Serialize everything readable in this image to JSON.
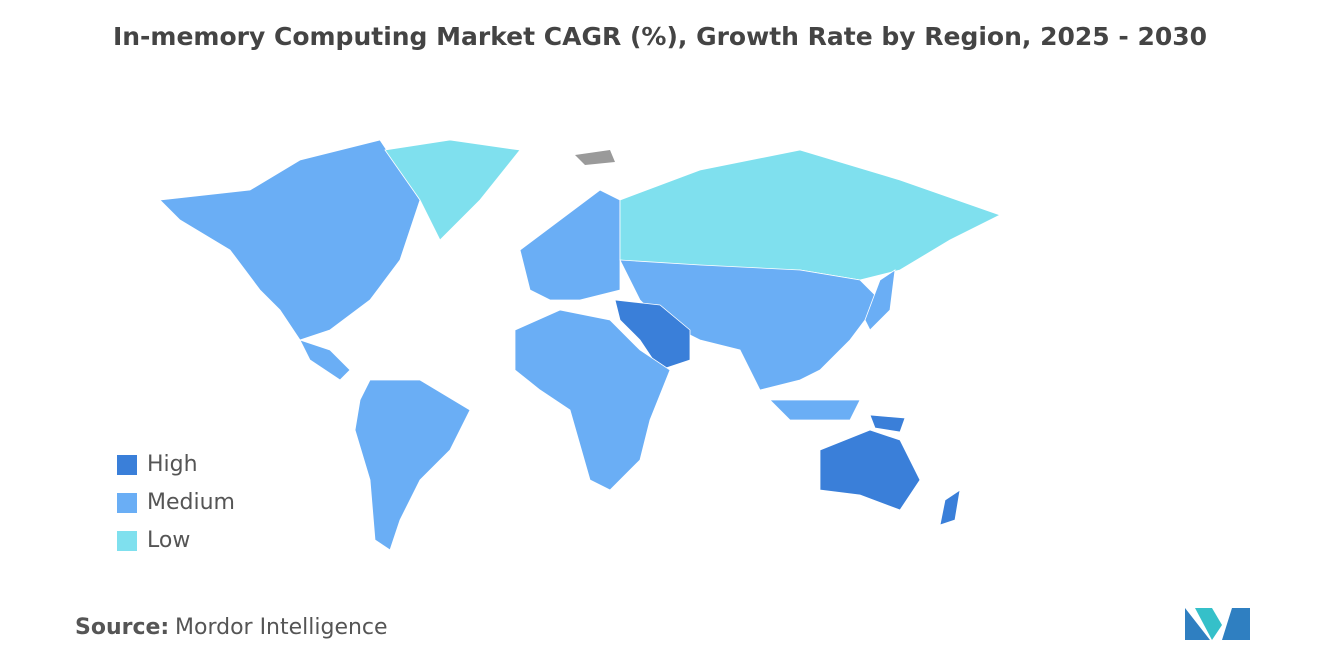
{
  "title": "In-memory Computing Market CAGR (%), Growth Rate by Region, 2025 - 2030",
  "legend": {
    "items": [
      {
        "label": "High",
        "color": "#3a7fd9"
      },
      {
        "label": "Medium",
        "color": "#6aaef5"
      },
      {
        "label": "Low",
        "color": "#7fe0ee"
      }
    ]
  },
  "source": {
    "label": "Source:",
    "text": "Mordor Intelligence"
  }
}
